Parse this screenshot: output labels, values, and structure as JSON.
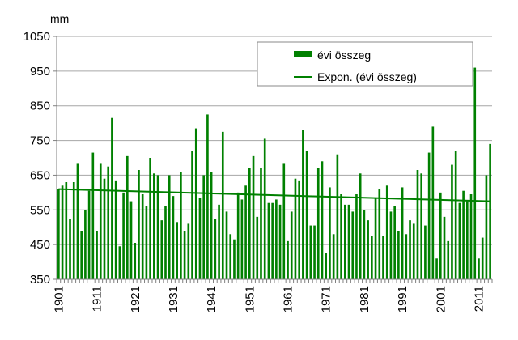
{
  "chart_data": {
    "type": "bar",
    "unit_label": "mm",
    "ylim": [
      350,
      1050
    ],
    "yticks": [
      350,
      450,
      550,
      650,
      750,
      850,
      950,
      1050
    ],
    "xtick_labels": [
      "1901",
      "1911",
      "1921",
      "1931",
      "1941",
      "1951",
      "1961",
      "1971",
      "1981",
      "1991",
      "2001",
      "2011"
    ],
    "x_start": 1901,
    "x_end": 2013,
    "grid": "horizontal",
    "bar_color": "#008000",
    "trend_color": "#008000",
    "legend_position": "top-right",
    "series": [
      {
        "name": "évi összeg",
        "kind": "bar",
        "values": [
          610,
          620,
          630,
          525,
          630,
          685,
          490,
          550,
          605,
          715,
          490,
          685,
          640,
          675,
          815,
          635,
          445,
          600,
          705,
          575,
          455,
          665,
          595,
          560,
          700,
          655,
          650,
          520,
          560,
          650,
          590,
          515,
          660,
          490,
          510,
          720,
          785,
          585,
          650,
          825,
          660,
          525,
          565,
          775,
          545,
          480,
          465,
          600,
          580,
          620,
          670,
          705,
          530,
          670,
          755,
          570,
          570,
          580,
          565,
          685,
          460,
          545,
          640,
          635,
          780,
          720,
          505,
          505,
          670,
          690,
          425,
          615,
          480,
          710,
          595,
          565,
          565,
          545,
          595,
          655,
          550,
          520,
          475,
          585,
          610,
          475,
          620,
          545,
          560,
          490,
          615,
          480,
          520,
          510,
          665,
          655,
          505,
          715,
          790,
          410,
          600,
          530,
          460,
          680,
          720,
          570,
          605,
          575,
          595,
          960,
          410,
          470,
          650,
          740
        ]
      },
      {
        "name": "Expon. (évi összeg)",
        "kind": "trendline",
        "start": 610,
        "end": 575
      }
    ]
  }
}
